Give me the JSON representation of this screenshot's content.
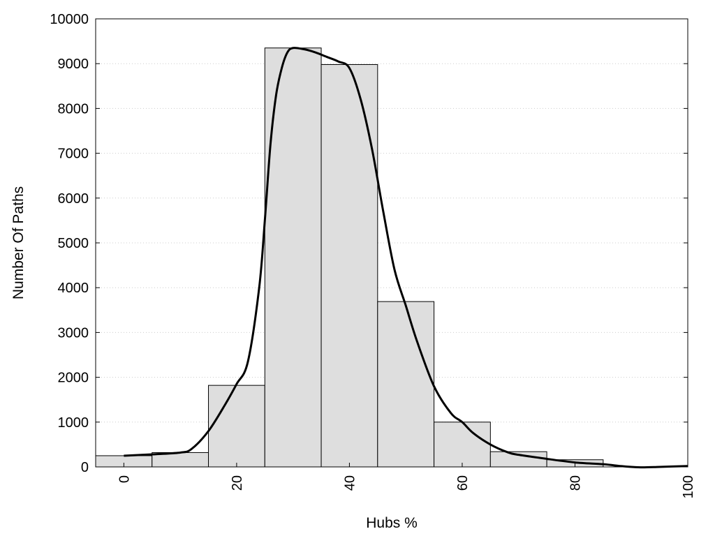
{
  "chart_data": {
    "type": "bar",
    "title": "",
    "xlabel": "Hubs %",
    "ylabel": "Number Of Paths",
    "xlim": [
      -5,
      100
    ],
    "ylim": [
      0,
      10000
    ],
    "x_ticks": [
      0,
      20,
      40,
      60,
      80,
      100
    ],
    "y_ticks": [
      0,
      1000,
      2000,
      3000,
      4000,
      5000,
      6000,
      7000,
      8000,
      9000,
      10000
    ],
    "grid": "horizontal dotted",
    "legend": "none",
    "bar_width": 10,
    "categories": [
      0,
      10,
      20,
      30,
      40,
      50,
      60,
      70,
      80,
      90,
      100
    ],
    "values": [
      250,
      320,
      1820,
      9350,
      8980,
      3690,
      1000,
      340,
      160,
      0,
      0
    ],
    "curve": {
      "x": [
        0,
        5,
        10,
        12,
        15,
        18,
        20,
        22,
        24,
        25,
        26,
        27,
        28,
        29,
        30,
        32,
        34,
        36,
        38,
        40,
        42,
        44,
        46,
        48,
        50,
        52,
        55,
        58,
        60,
        62,
        65,
        68,
        70,
        75,
        80,
        85,
        88,
        90,
        92,
        95,
        100
      ],
      "y": [
        250,
        280,
        320,
        400,
        800,
        1400,
        1850,
        2350,
        4000,
        5500,
        7200,
        8300,
        8900,
        9250,
        9350,
        9320,
        9250,
        9150,
        9050,
        8900,
        8200,
        7100,
        5700,
        4400,
        3600,
        2800,
        1800,
        1200,
        1000,
        750,
        500,
        330,
        270,
        180,
        100,
        60,
        20,
        0,
        -10,
        0,
        20
      ]
    },
    "colors": {
      "bar_fill": "#dedede",
      "bar_stroke": "#000000",
      "curve": "#000000",
      "grid": "#cccccc"
    }
  }
}
